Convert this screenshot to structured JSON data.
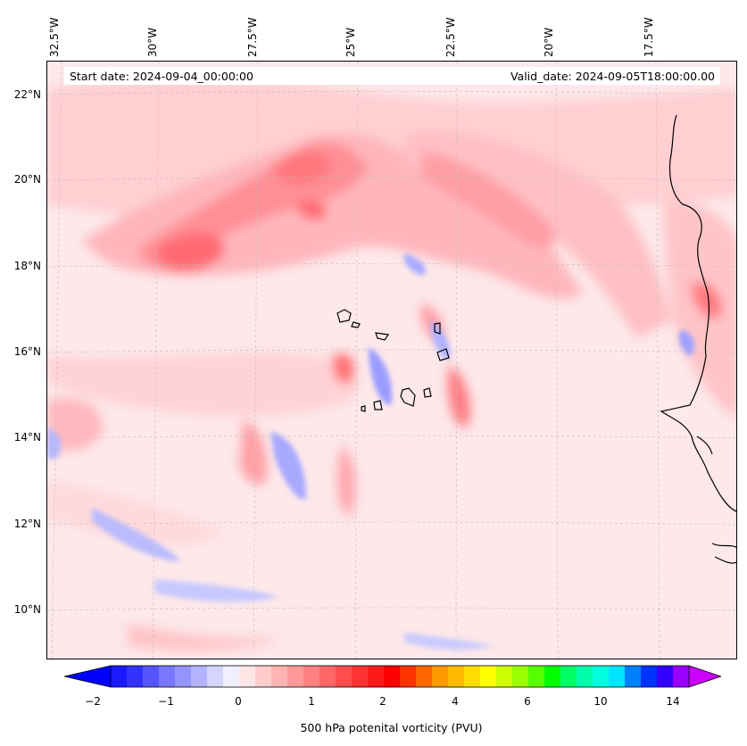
{
  "header": {
    "start_date": "Start date: 2024-09-04_00:00:00",
    "valid_date": "Valid_date: 2024-09-05T18:00:00.00"
  },
  "axes": {
    "longitude_labels": [
      "32.5°W",
      "30°W",
      "27.5°W",
      "25°W",
      "22.5°W",
      "20°W",
      "17.5°W"
    ],
    "latitude_labels": [
      "22°N",
      "20°N",
      "18°N",
      "16°N",
      "14°N",
      "12°N",
      "10°N"
    ]
  },
  "colorbar": {
    "label": "500 hPa potenital vorticity (PVU)",
    "tick_labels": [
      "−2",
      "−1",
      "0",
      "1",
      "2",
      "4",
      "6",
      "10",
      "14"
    ],
    "colors": [
      "#1a1aff",
      "#3333ff",
      "#5555ff",
      "#7777ff",
      "#9494ff",
      "#b3b3ff",
      "#d4d4ff",
      "#f0f0ff",
      "#ffe6e6",
      "#ffcccc",
      "#ffb3b3",
      "#ff9999",
      "#ff8080",
      "#ff6666",
      "#ff4d4d",
      "#ff3333",
      "#ff1a1a",
      "#ff0000",
      "#ff3300",
      "#ff6600",
      "#ff9900",
      "#ffbb00",
      "#ffdd00",
      "#ffff00",
      "#ccff00",
      "#99ff00",
      "#55ff00",
      "#00ff00",
      "#00ff66",
      "#00ffaa",
      "#00ffdd",
      "#00e5ff",
      "#0080ff",
      "#0033ff",
      "#3300ff",
      "#9900ff"
    ],
    "min_color": "#0000ff",
    "max_color": "#cc00ff"
  }
}
